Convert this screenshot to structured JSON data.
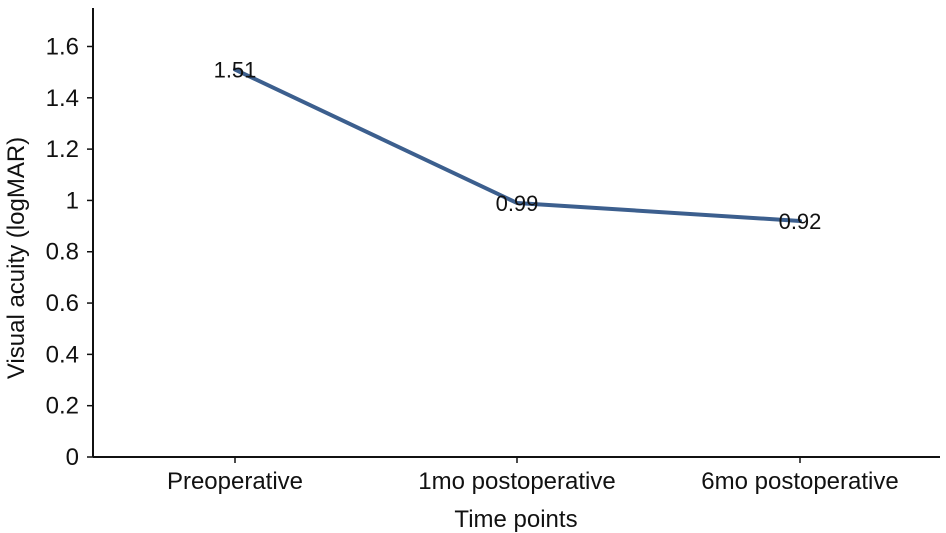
{
  "chart_data": {
    "type": "line",
    "title": "",
    "xlabel": "Time points",
    "ylabel": "Visual acuity (logMAR)",
    "categories": [
      "Preoperative",
      "1mo postoperative",
      "6mo postoperative"
    ],
    "series": [
      {
        "values": [
          1.51,
          0.99,
          0.92
        ]
      }
    ],
    "data_labels": [
      "1.51",
      "0.99",
      "0.92"
    ],
    "y_ticks": [
      0,
      0.2,
      0.4,
      0.6,
      0.8,
      1,
      1.2,
      1.4,
      1.6
    ],
    "y_tick_labels": [
      "0",
      "0.2",
      "0.4",
      "0.6",
      "0.8",
      "1",
      "1.2",
      "1.4",
      "1.6"
    ],
    "ylim": [
      0,
      1.75
    ],
    "grid": false,
    "line_color": "#3c5f8e"
  }
}
